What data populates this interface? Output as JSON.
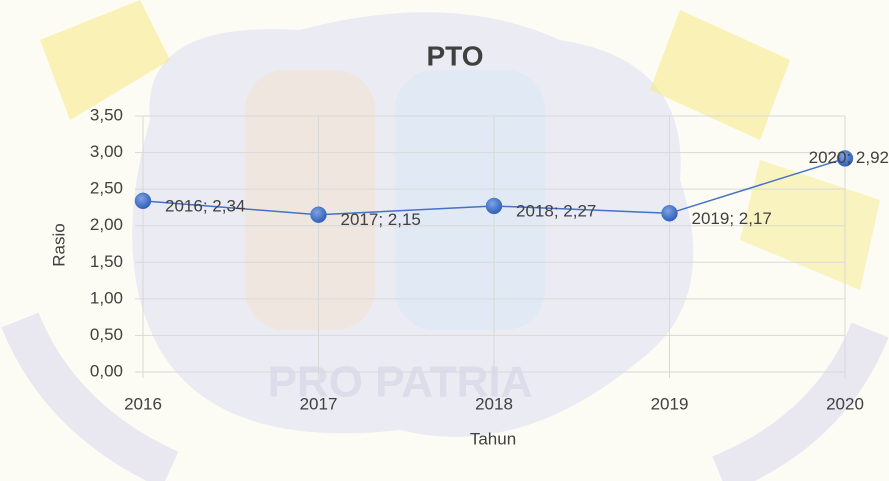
{
  "chart_data": {
    "type": "line",
    "title": "PTO",
    "x_label": "Tahun",
    "y_label": "Rasio",
    "watermark": "PRO PATRIA",
    "x": [
      2016,
      2017,
      2018,
      2019,
      2020
    ],
    "series": [
      {
        "name": "PTO",
        "color": "#4472c4",
        "values": [
          2.34,
          2.15,
          2.27,
          2.17,
          2.92
        ],
        "value_labels": [
          "2016; 2,34",
          "2017; 2,15",
          "2018; 2,27",
          "2019; 2,17",
          "2020; 2,92"
        ]
      }
    ],
    "xlim": [
      2016,
      2020
    ],
    "xticks": [
      2016,
      2017,
      2018,
      2019,
      2020
    ],
    "ylim": [
      0,
      3.5
    ],
    "yticks": [
      {
        "value": 0,
        "label": "0,00"
      },
      {
        "value": 0.5,
        "label": "0,50"
      },
      {
        "value": 1,
        "label": "1,00"
      },
      {
        "value": 1.5,
        "label": "1,50"
      },
      {
        "value": 2,
        "label": "2,00"
      },
      {
        "value": 2.5,
        "label": "2,50"
      },
      {
        "value": 3,
        "label": "3,00"
      },
      {
        "value": 3.5,
        "label": "3,50"
      }
    ],
    "grid": true,
    "legend": false
  }
}
